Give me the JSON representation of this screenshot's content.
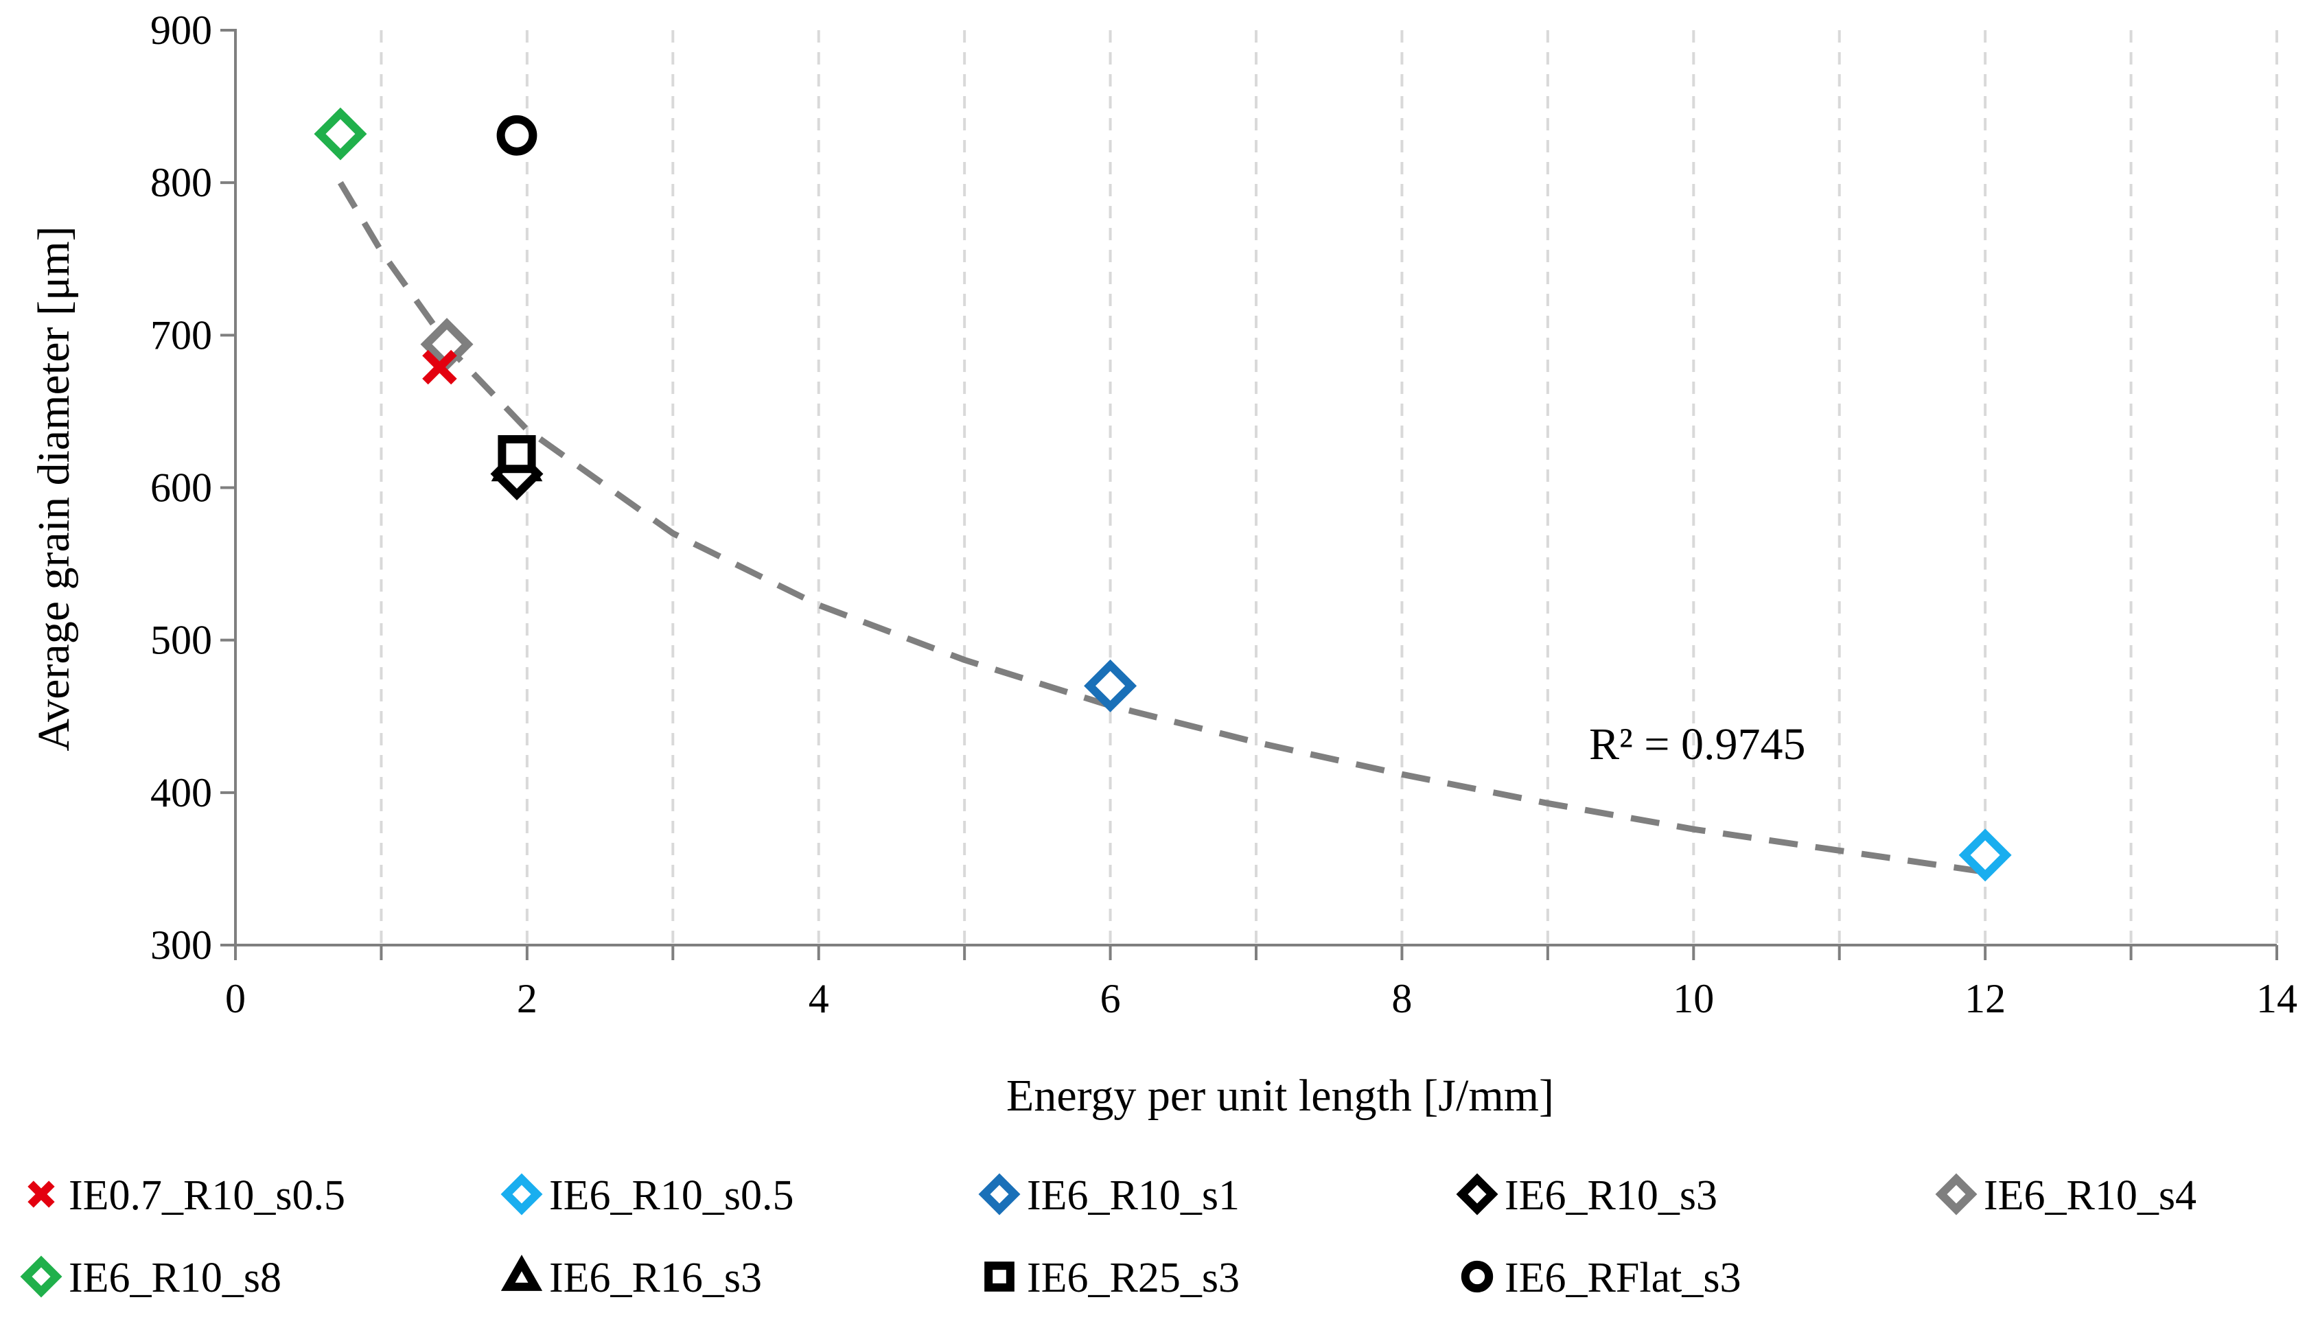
{
  "chart_data": {
    "type": "scatter",
    "title": "",
    "xlabel": "Energy per unit length [J/mm]",
    "ylabel": "Average grain diameter [μm]",
    "xlim": [
      0,
      14
    ],
    "ylim": [
      300,
      900
    ],
    "x_major_ticks": [
      0,
      2,
      4,
      6,
      8,
      10,
      12,
      14
    ],
    "x_tick_labels": [
      "0",
      "2",
      "4",
      "6",
      "8",
      "10",
      "12",
      "14"
    ],
    "x_minor_ticks": [
      1,
      3,
      5,
      7,
      9,
      11,
      13
    ],
    "y_major_ticks": [
      300,
      400,
      500,
      600,
      700,
      800,
      900
    ],
    "y_tick_labels": [
      "300",
      "400",
      "500",
      "600",
      "700",
      "800",
      "900"
    ],
    "grid": "vertical dashed at every x unit",
    "legend_placement": "bottom",
    "series": [
      {
        "name": "IE0.7_R10_s0.5",
        "marker": "x",
        "color": "#e3000f",
        "points": [
          {
            "x": 1.4,
            "y": 679
          }
        ]
      },
      {
        "name": "IE6_R10_s0.5",
        "marker": "diamond",
        "color": "#19aeef",
        "points": [
          {
            "x": 12.0,
            "y": 359
          }
        ]
      },
      {
        "name": "IE6_R10_s1",
        "marker": "diamond",
        "color": "#1a70b8",
        "points": [
          {
            "x": 6.0,
            "y": 470
          }
        ]
      },
      {
        "name": "IE6_R10_s3",
        "marker": "diamond",
        "color": "#000000",
        "points": [
          {
            "x": 1.93,
            "y": 609
          }
        ]
      },
      {
        "name": "IE6_R10_s4",
        "marker": "diamond",
        "color": "#7f7f7f",
        "points": [
          {
            "x": 1.45,
            "y": 694
          }
        ]
      },
      {
        "name": "IE6_R10_s8",
        "marker": "diamond",
        "color": "#20b04b",
        "points": [
          {
            "x": 0.72,
            "y": 832
          }
        ]
      },
      {
        "name": "IE6_R16_s3",
        "marker": "triangle",
        "color": "#000000",
        "points": [
          {
            "x": 1.93,
            "y": 616
          }
        ]
      },
      {
        "name": "IE6_R25_s3",
        "marker": "square",
        "color": "#000000",
        "points": [
          {
            "x": 1.93,
            "y": 622
          }
        ]
      },
      {
        "name": "IE6_RFlat_s3",
        "marker": "circle",
        "color": "#000000",
        "points": [
          {
            "x": 1.93,
            "y": 831
          }
        ]
      }
    ],
    "trendline": {
      "type": "power",
      "color": "#7f7f7f",
      "style": "dashed",
      "x_range": [
        0.72,
        12.0
      ],
      "points": [
        {
          "x": 0.72,
          "y": 800
        },
        {
          "x": 1.0,
          "y": 755
        },
        {
          "x": 1.5,
          "y": 688
        },
        {
          "x": 2.0,
          "y": 638
        },
        {
          "x": 3.0,
          "y": 570
        },
        {
          "x": 4.0,
          "y": 523
        },
        {
          "x": 5.0,
          "y": 487
        },
        {
          "x": 6.0,
          "y": 457
        },
        {
          "x": 7.0,
          "y": 433
        },
        {
          "x": 8.0,
          "y": 412
        },
        {
          "x": 9.0,
          "y": 393
        },
        {
          "x": 10.0,
          "y": 376
        },
        {
          "x": 11.0,
          "y": 362
        },
        {
          "x": 12.0,
          "y": 348
        }
      ]
    },
    "annotation": "R² = 0.9745"
  }
}
